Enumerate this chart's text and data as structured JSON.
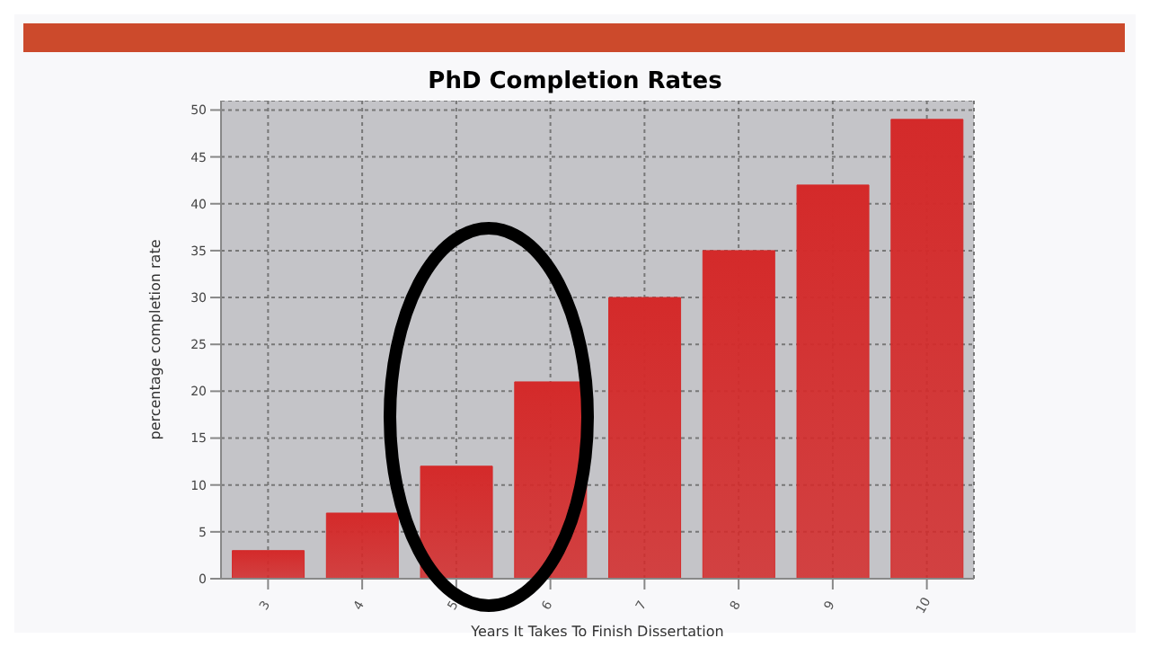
{
  "chart_data": {
    "type": "bar",
    "title": "PhD Completion Rates",
    "xlabel": "Years It Takes To Finish Dissertation",
    "ylabel": "percentage completion rate",
    "categories": [
      "3",
      "4",
      "5",
      "6",
      "7",
      "8",
      "9",
      "10"
    ],
    "values": [
      3,
      7,
      12,
      21,
      30,
      35,
      42,
      49
    ],
    "color": "#d42a2a",
    "ylim": [
      0,
      51
    ],
    "yticks": [
      0,
      5,
      10,
      15,
      20,
      25,
      30,
      35,
      40,
      45,
      50
    ],
    "grid": true
  }
}
